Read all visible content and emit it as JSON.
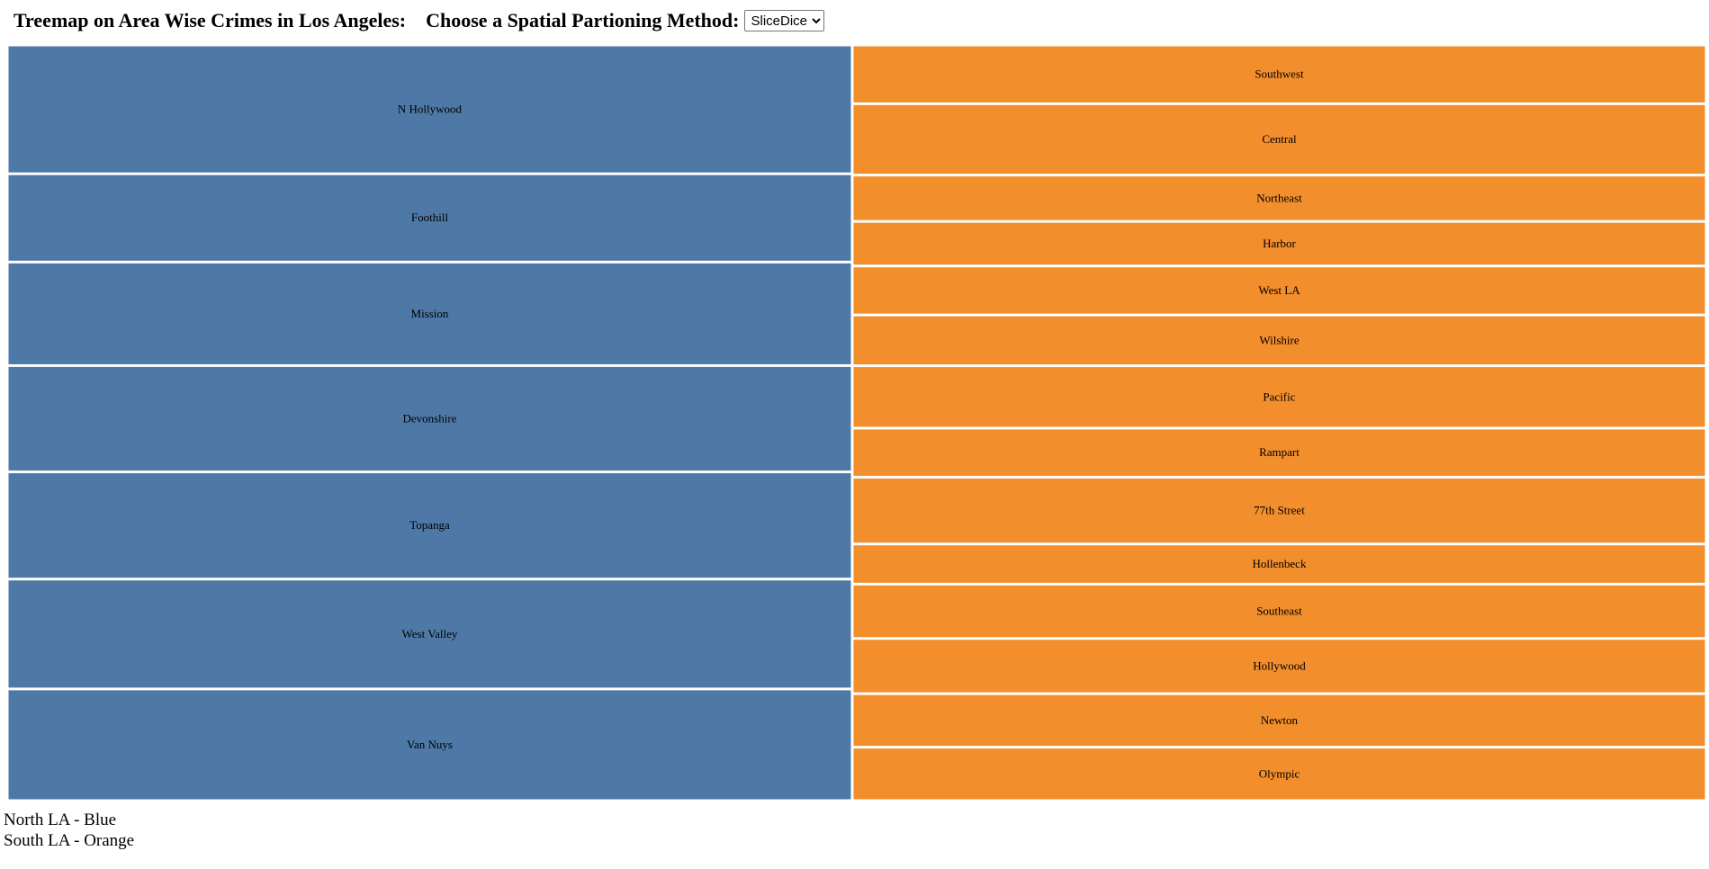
{
  "header": {
    "title": "Treemap on Area Wise Crimes in Los Angeles:",
    "method_label": "Choose a Spatial Partioning Method:",
    "method_selected": "SliceDice"
  },
  "legend": {
    "north": "North LA - Blue",
    "south": "South LA - Orange"
  },
  "chart_data": {
    "type": "treemap",
    "tiling": "SliceDice",
    "colors": {
      "North LA": "#4e79a7",
      "South LA": "#f28e2c"
    },
    "groups": [
      {
        "name": "North LA",
        "color": "#4e79a7",
        "leaves": [
          {
            "name": "N Hollywood",
            "value": 14.3
          },
          {
            "name": "Foothill",
            "value": 9.8
          },
          {
            "name": "Mission",
            "value": 11.5
          },
          {
            "name": "Devonshire",
            "value": 11.8
          },
          {
            "name": "Topanga",
            "value": 11.9
          },
          {
            "name": "West Valley",
            "value": 12.2
          },
          {
            "name": "Van Nuys",
            "value": 12.4
          }
        ]
      },
      {
        "name": "South LA",
        "color": "#f28e2c",
        "leaves": [
          {
            "name": "Southwest",
            "value": 6.6
          },
          {
            "name": "Central",
            "value": 8.0
          },
          {
            "name": "Northeast",
            "value": 5.2
          },
          {
            "name": "Harbor",
            "value": 5.0
          },
          {
            "name": "West LA",
            "value": 5.5
          },
          {
            "name": "Wilshire",
            "value": 5.7
          },
          {
            "name": "Pacific",
            "value": 7.0
          },
          {
            "name": "Rampart",
            "value": 5.5
          },
          {
            "name": "77th Street",
            "value": 7.5
          },
          {
            "name": "Hollenbeck",
            "value": 4.5
          },
          {
            "name": "Southeast",
            "value": 6.1
          },
          {
            "name": "Hollywood",
            "value": 6.2
          },
          {
            "name": "Newton",
            "value": 6.0
          },
          {
            "name": "Olympic",
            "value": 6.0
          }
        ]
      }
    ]
  }
}
